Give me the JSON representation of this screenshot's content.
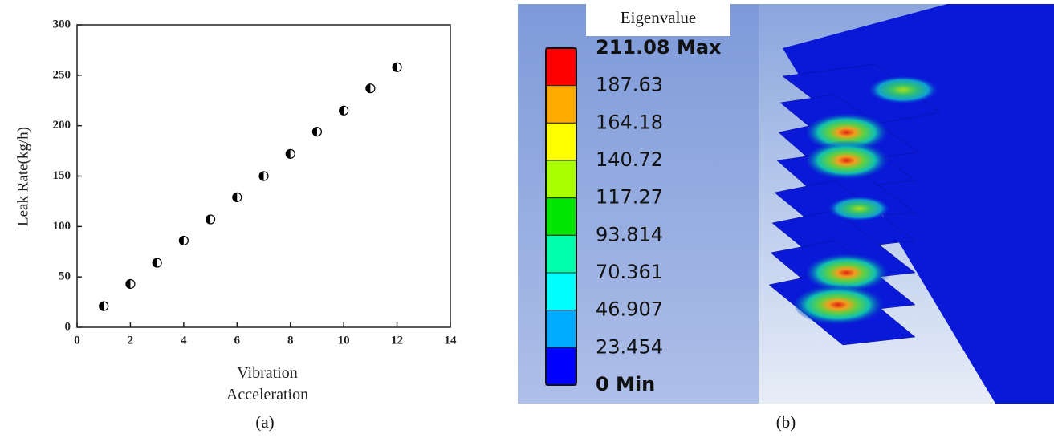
{
  "chart_data": {
    "type": "scatter",
    "caption": "(a)",
    "xlabel": "Vibration Acceleration",
    "ylabel": "Leak Rate(kg/h)",
    "x": [
      1,
      2,
      3,
      4,
      5,
      6,
      7,
      8,
      9,
      10,
      11,
      12
    ],
    "values": [
      21,
      43,
      64,
      86,
      107,
      129,
      150,
      172,
      194,
      215,
      237,
      258
    ],
    "color": "#000000",
    "xlim": [
      0,
      14
    ],
    "xticks": [
      0,
      2,
      4,
      6,
      8,
      10,
      12,
      14
    ],
    "ylim": [
      0,
      300
    ],
    "yticks": [
      0,
      50,
      100,
      150,
      200,
      250,
      300
    ],
    "grid": false
  },
  "contour_legend": {
    "title": "Eigenvalue",
    "caption": "(b)",
    "labels": [
      "211.08 Max",
      "187.63",
      "164.18",
      "140.72",
      "117.27",
      "93.814",
      "70.361",
      "46.907",
      "23.454",
      "0 Min"
    ],
    "colors": [
      "#ff0000",
      "#ffaa00",
      "#ffff00",
      "#aaff00",
      "#00e600",
      "#00ffaa",
      "#00ffff",
      "#00aaff",
      "#0000ff"
    ]
  }
}
